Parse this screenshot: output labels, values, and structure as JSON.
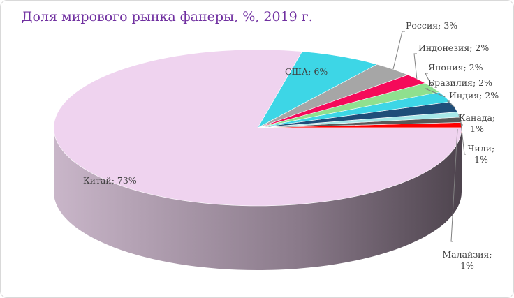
{
  "chart_data": {
    "type": "pie",
    "title": "Доля мирового рынка фанеры, %, 2019 г.",
    "slices": [
      {
        "name": "Малайзия",
        "value": 1,
        "label": [
          "Малайзия;",
          "1%"
        ],
        "color": "#ff0000"
      },
      {
        "name": "Чили",
        "value": 1,
        "label": [
          "Чили;",
          "1%"
        ],
        "color": "#595959"
      },
      {
        "name": "Канада",
        "value": 1,
        "label": [
          "Канада;",
          "1%"
        ],
        "color": "#a6e8e8"
      },
      {
        "name": "Индия",
        "value": 2,
        "label": [
          "Индия; 2%"
        ],
        "color": "#1f4e79"
      },
      {
        "name": "Бразилия",
        "value": 2,
        "label": [
          "Бразилия; 2%"
        ],
        "color": "#3dd6e6"
      },
      {
        "name": "Япония",
        "value": 2,
        "label": [
          "Япония; 2%"
        ],
        "color": "#8fe08f"
      },
      {
        "name": "Индонезия",
        "value": 2,
        "label": [
          "Индонезия; 2%"
        ],
        "color": "#f50a5a"
      },
      {
        "name": "Россия",
        "value": 3,
        "label": [
          "Россия; 3%"
        ],
        "color": "#a6a6a6"
      },
      {
        "name": "США",
        "value": 6,
        "label": [
          "США; 6%"
        ],
        "color": "#3dd6e6"
      },
      {
        "name": "Китай",
        "value": 73,
        "label": [
          "Китай; 73%"
        ],
        "color": "#efd3ef"
      }
    ]
  }
}
